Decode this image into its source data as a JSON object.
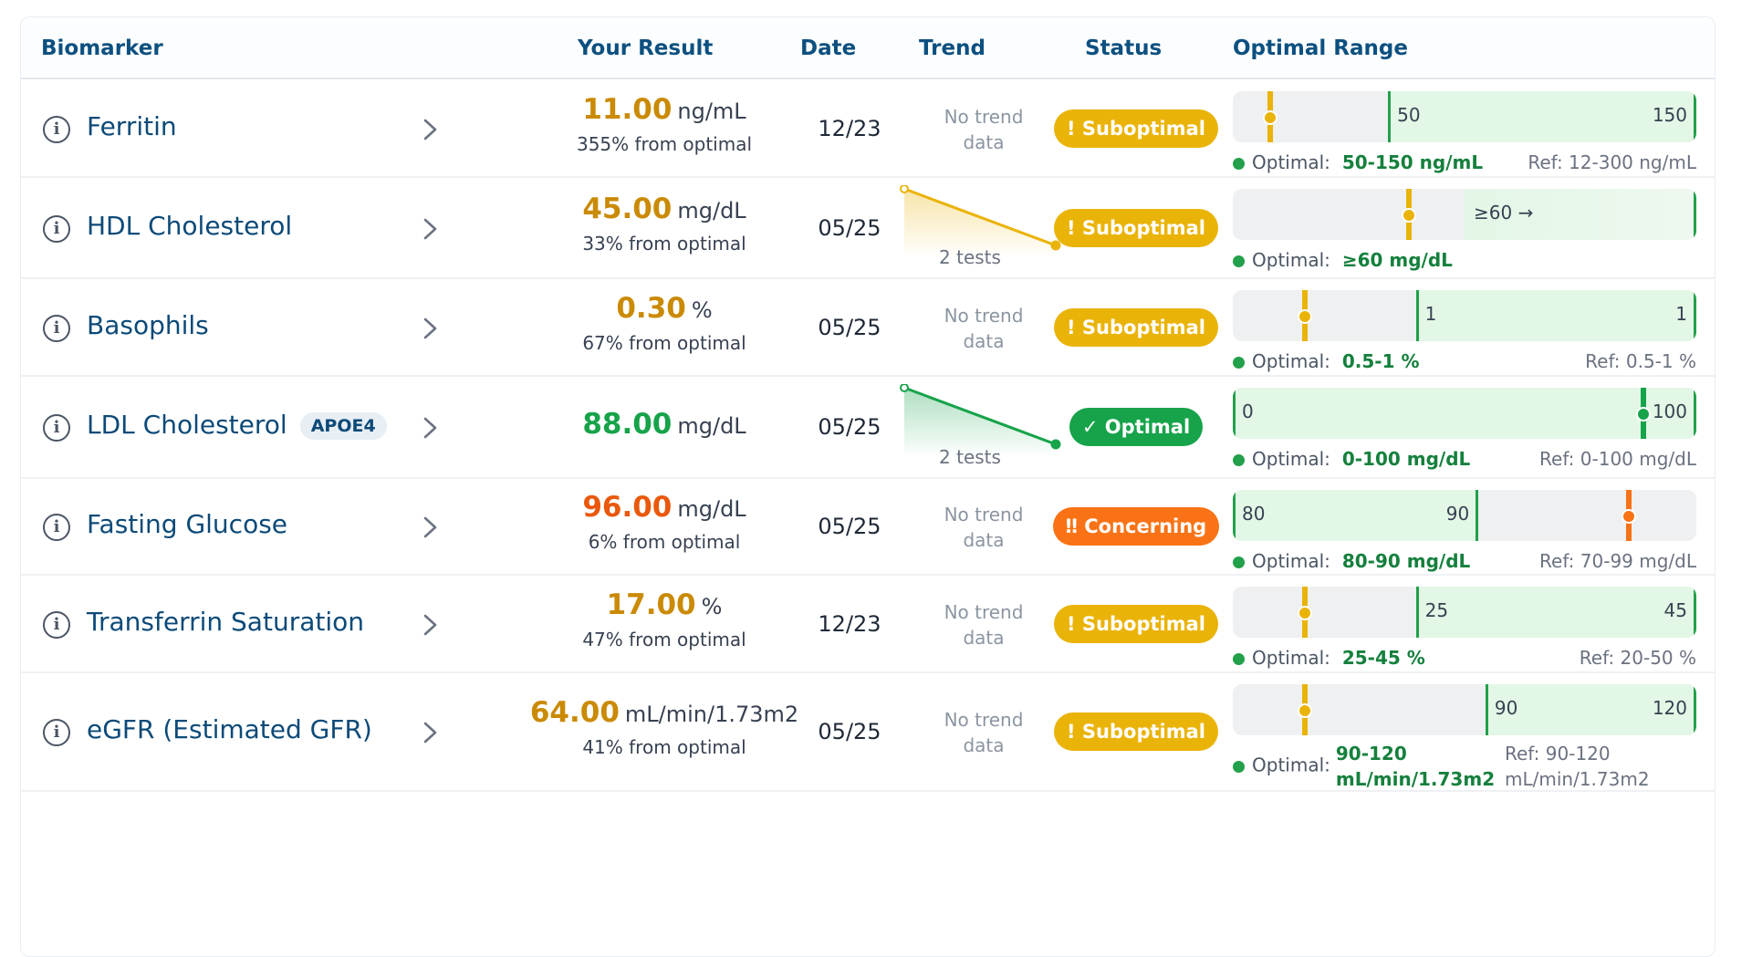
{
  "colors": {
    "header_text": "#0c5080",
    "name_text": "#0c4a78",
    "suboptimal": "#eab308",
    "optimal": "#16a34a",
    "concerning": "#f97316",
    "optimal_zone": "#e3f7e6",
    "bar_bg": "#eef0f2"
  },
  "header": {
    "biomarker": "Biomarker",
    "result": "Your Result",
    "date": "Date",
    "trend": "Trend",
    "status": "Status",
    "range": "Optimal Range"
  },
  "rows": [
    {
      "name": "Ferritin",
      "badge": null,
      "value": "11.00",
      "unit": "ng/mL",
      "sub": "355% from optimal",
      "date": "12/23",
      "trend": {
        "has_data": false,
        "text1": "No trend",
        "text2": "data"
      },
      "status": {
        "label": "! Suboptimal",
        "kind": "suboptimal"
      },
      "range": {
        "optimal_label": "Optimal:",
        "optimal_value": "50-150 ng/mL",
        "ref": "Ref: 12-300 ng/mL",
        "low_label": "50",
        "high_label": "150",
        "marker_fraction": 0.08,
        "zone_start": 0.335,
        "zone_end": 1.0
      }
    },
    {
      "name": "HDL Cholesterol",
      "badge": null,
      "value": "45.00",
      "unit": "mg/dL",
      "sub": "33% from optimal",
      "date": "05/25",
      "trend": {
        "has_data": true,
        "caption": "2 tests",
        "direction": "down",
        "color": "#eab308"
      },
      "status": {
        "label": "! Suboptimal",
        "kind": "suboptimal"
      },
      "range": {
        "optimal_label": "Optimal:",
        "optimal_value": "≥60 mg/dL",
        "ref": "",
        "low_label": "≥60 →",
        "high_label": "",
        "marker_fraction": 0.38,
        "zone_start": 0.5,
        "zone_end": 1.0
      }
    },
    {
      "name": "Basophils",
      "badge": null,
      "value": "0.30",
      "unit": "%",
      "sub": "67% from optimal",
      "date": "05/25",
      "trend": {
        "has_data": false,
        "text1": "No trend",
        "text2": "data"
      },
      "status": {
        "label": "! Suboptimal",
        "kind": "suboptimal"
      },
      "range": {
        "optimal_label": "Optimal:",
        "optimal_value": "0.5-1 %",
        "ref": "Ref: 0.5-1 %",
        "low_label": "1",
        "high_label": "1",
        "marker_fraction": 0.155,
        "zone_start": 0.395,
        "zone_end": 1.0
      }
    },
    {
      "name": "LDL Cholesterol",
      "badge": "APOE4",
      "value": "88.00",
      "unit": "mg/dL",
      "sub": "",
      "date": "05/25",
      "trend": {
        "has_data": true,
        "caption": "2 tests",
        "direction": "down",
        "color": "#16a34a"
      },
      "status": {
        "label": "✓ Optimal",
        "kind": "optimal"
      },
      "range": {
        "optimal_label": "Optimal:",
        "optimal_value": "0-100 mg/dL",
        "ref": "Ref: 0-100 mg/dL",
        "low_label": "0",
        "high_label": "100",
        "marker_fraction": 0.885,
        "zone_start": 0.0,
        "zone_end": 1.0
      }
    },
    {
      "name": "Fasting Glucose",
      "badge": null,
      "value": "96.00",
      "unit": "mg/dL",
      "sub": "6% from optimal",
      "date": "05/25",
      "trend": {
        "has_data": false,
        "text1": "No trend",
        "text2": "data"
      },
      "status": {
        "label": "‼ Concerning",
        "kind": "concerning"
      },
      "range": {
        "optimal_label": "Optimal:",
        "optimal_value": "80-90 mg/dL",
        "ref": "Ref: 70-99 mg/dL",
        "low_label": "80",
        "high_label": "90",
        "marker_fraction": 0.855,
        "zone_start": 0.0,
        "zone_end": 0.53
      }
    },
    {
      "name": "Transferrin Saturation",
      "badge": null,
      "value": "17.00",
      "unit": "%",
      "sub": "47% from optimal",
      "date": "12/23",
      "trend": {
        "has_data": false,
        "text1": "No trend",
        "text2": "data"
      },
      "status": {
        "label": "! Suboptimal",
        "kind": "suboptimal"
      },
      "range": {
        "optimal_label": "Optimal:",
        "optimal_value": "25-45 %",
        "ref": "Ref: 20-50 %",
        "low_label": "25",
        "high_label": "45",
        "marker_fraction": 0.155,
        "zone_start": 0.395,
        "zone_end": 1.0
      }
    },
    {
      "name": "eGFR (Estimated GFR)",
      "badge": null,
      "value": "64.00",
      "unit": "mL/min/1.73m2",
      "sub": "41% from optimal",
      "date": "05/25",
      "trend": {
        "has_data": false,
        "text1": "No trend",
        "text2": "data"
      },
      "status": {
        "label": "! Suboptimal",
        "kind": "suboptimal"
      },
      "range": {
        "optimal_label": "Optimal:",
        "optimal_value": "90-120 mL/min/1.73m2",
        "ref": "Ref: 90-120 mL/min/1.73m2",
        "low_label": "90",
        "high_label": "120",
        "marker_fraction": 0.155,
        "zone_start": 0.545,
        "zone_end": 1.0
      }
    }
  ]
}
